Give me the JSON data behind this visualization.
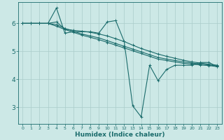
{
  "xlabel": "Humidex (Indice chaleur)",
  "bg_color": "#cce8e6",
  "grid_color": "#aaccca",
  "line_color": "#1a6b6b",
  "xlim": [
    -0.5,
    23.5
  ],
  "ylim": [
    2.4,
    6.75
  ],
  "yticks": [
    3,
    4,
    5,
    6
  ],
  "xticks": [
    0,
    1,
    2,
    3,
    4,
    5,
    6,
    7,
    8,
    9,
    10,
    11,
    12,
    13,
    14,
    15,
    16,
    17,
    18,
    19,
    20,
    21,
    22,
    23
  ],
  "line1_x": [
    0,
    1,
    2,
    3,
    4,
    5,
    6,
    7,
    8,
    9,
    10,
    11,
    12,
    13,
    14,
    15,
    16,
    17,
    18,
    19,
    20,
    21,
    22,
    23
  ],
  "line1_y": [
    6.0,
    6.0,
    6.0,
    6.0,
    6.55,
    5.65,
    5.7,
    5.7,
    5.7,
    5.65,
    6.05,
    6.1,
    5.35,
    3.05,
    2.65,
    4.5,
    3.95,
    4.35,
    4.5,
    4.5,
    4.5,
    4.6,
    4.6,
    4.45
  ],
  "line2_x": [
    0,
    1,
    2,
    3,
    4,
    5,
    6,
    7,
    8,
    9,
    10,
    11,
    12,
    13,
    14,
    15,
    16,
    17,
    18,
    19,
    20,
    21,
    22,
    23
  ],
  "line2_y": [
    6.0,
    6.0,
    6.0,
    6.0,
    6.05,
    5.8,
    5.75,
    5.72,
    5.68,
    5.62,
    5.55,
    5.45,
    5.35,
    5.22,
    5.1,
    5.0,
    4.9,
    4.82,
    4.75,
    4.68,
    4.62,
    4.58,
    4.54,
    4.5
  ],
  "line3_x": [
    0,
    1,
    2,
    3,
    4,
    5,
    6,
    7,
    8,
    9,
    10,
    11,
    12,
    13,
    14,
    15,
    16,
    17,
    18,
    19,
    20,
    21,
    22,
    23
  ],
  "line3_y": [
    6.0,
    6.0,
    6.0,
    6.0,
    5.95,
    5.82,
    5.72,
    5.62,
    5.55,
    5.48,
    5.38,
    5.28,
    5.18,
    5.08,
    4.98,
    4.88,
    4.78,
    4.72,
    4.67,
    4.62,
    4.58,
    4.54,
    4.51,
    4.47
  ],
  "line4_x": [
    0,
    1,
    2,
    3,
    4,
    5,
    6,
    7,
    8,
    9,
    10,
    11,
    12,
    13,
    14,
    15,
    16,
    17,
    18,
    19,
    20,
    21,
    22,
    23
  ],
  "line4_y": [
    6.0,
    6.0,
    6.0,
    6.0,
    5.9,
    5.78,
    5.68,
    5.58,
    5.5,
    5.42,
    5.32,
    5.22,
    5.12,
    5.02,
    4.92,
    4.82,
    4.72,
    4.67,
    4.62,
    4.57,
    4.54,
    4.51,
    4.49,
    4.45
  ]
}
